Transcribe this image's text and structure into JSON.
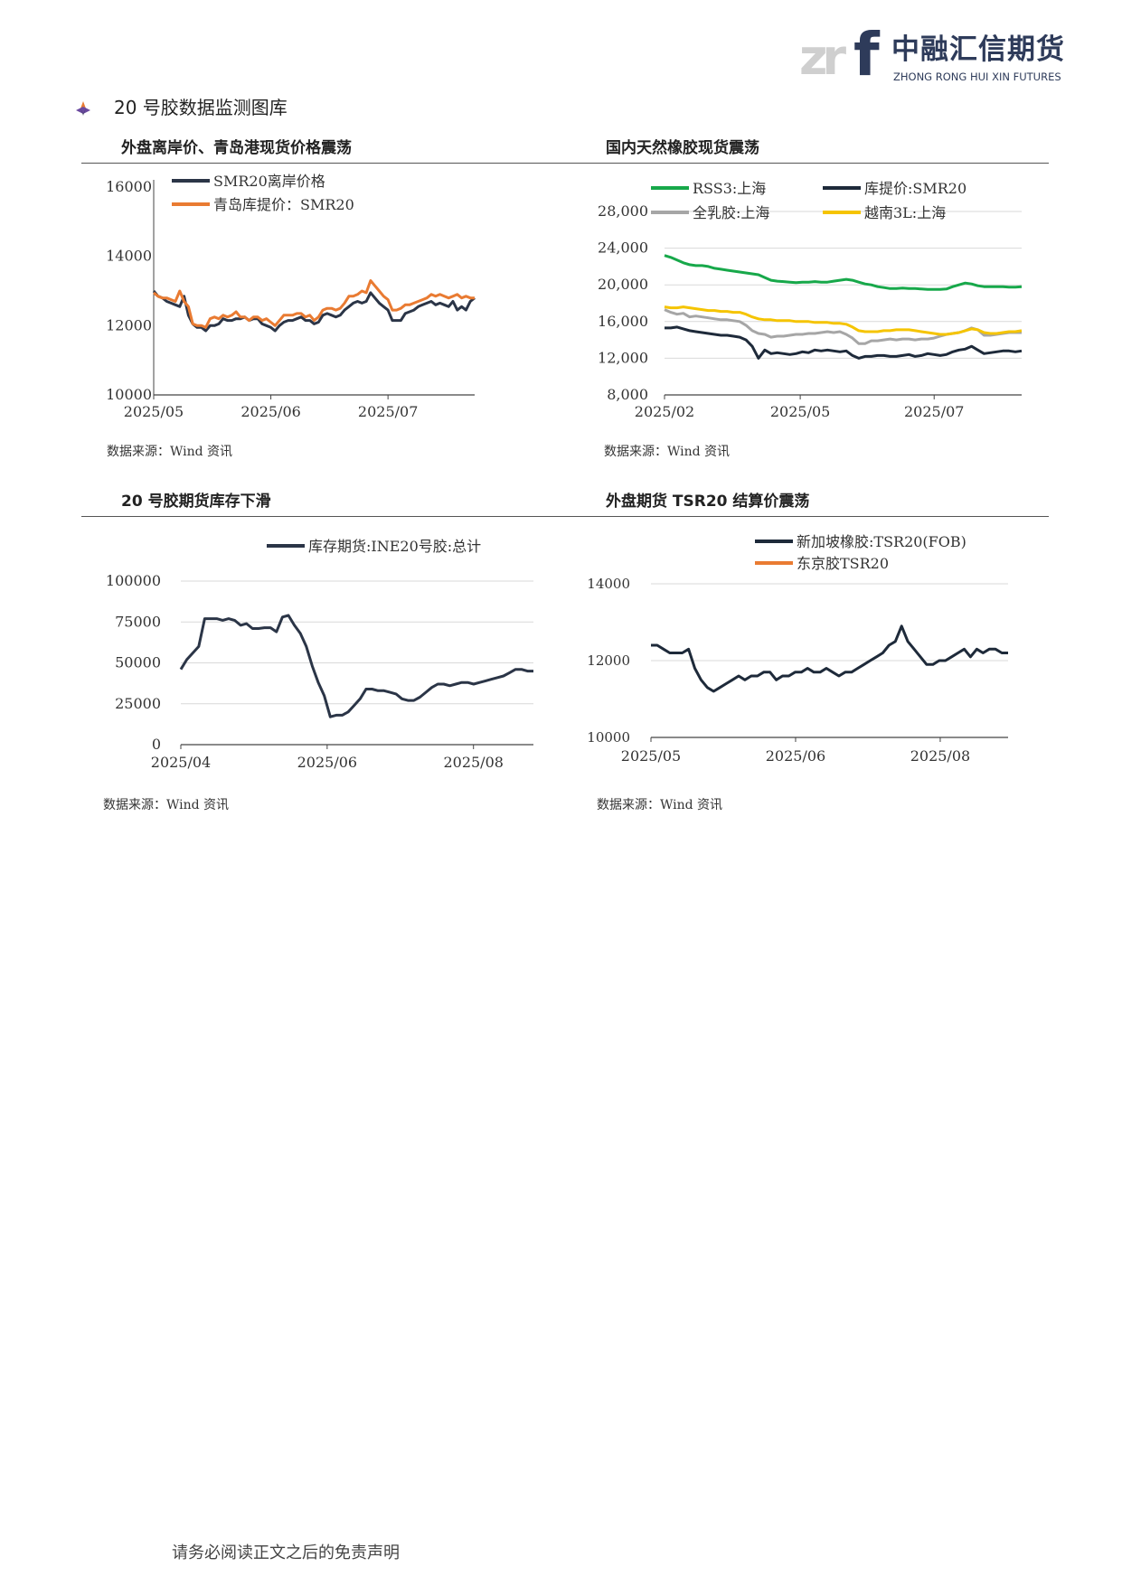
{
  "logo": {
    "mark_zr": "zr",
    "mark_f": "f",
    "name_cn": "中融汇信期货",
    "name_en": "ZHONG RONG HUI XIN FUTURES"
  },
  "section": {
    "title": "20 号胶数据监测图库"
  },
  "colors": {
    "navy": "#2b3547",
    "orange": "#e97b32",
    "green": "#17a84a",
    "gray": "#a6a6a6",
    "yellow": "#f5c400",
    "rule": "#555555"
  },
  "panels": [
    {
      "title": "外盘离岸价、青岛港现货价格震荡",
      "source": "数据来源：Wind 资讯"
    },
    {
      "title": "国内天然橡胶现货震荡",
      "source": "数据来源：Wind 资讯"
    },
    {
      "title": "20 号胶期货库存下滑",
      "source": "数据来源：Wind 资讯"
    },
    {
      "title": "外盘期货 TSR20 结算价震荡",
      "source": "数据来源：Wind 资讯"
    }
  ],
  "footer": "请务必阅读正文之后的免责声明",
  "chart_data": [
    {
      "type": "line",
      "x_ticks": [
        "2025/05",
        "2025/06",
        "2025/07"
      ],
      "ylim": [
        10000,
        16000
      ],
      "y_ticks": [
        "10000",
        "12000",
        "14000",
        "16000"
      ],
      "grid": false,
      "legend_position": "top-left",
      "x_label_position": [
        0,
        0.365,
        0.73
      ],
      "series": [
        {
          "name": "SMR20离岸价格",
          "color": "#2b3547",
          "values": [
            13000,
            12850,
            12800,
            12700,
            12650,
            12600,
            12550,
            12850,
            12300,
            12050,
            11950,
            11950,
            11850,
            12000,
            12000,
            12050,
            12200,
            12150,
            12150,
            12200,
            12200,
            12250,
            12150,
            12200,
            12200,
            12050,
            12000,
            11950,
            11850,
            12000,
            12100,
            12150,
            12150,
            12200,
            12250,
            12150,
            12150,
            12050,
            12100,
            12300,
            12350,
            12300,
            12250,
            12300,
            12450,
            12550,
            12650,
            12700,
            12650,
            12700,
            12950,
            12800,
            12650,
            12550,
            12450,
            12150,
            12150,
            12150,
            12350,
            12400,
            12450,
            12550,
            12600,
            12650,
            12700,
            12600,
            12650,
            12600,
            12550,
            12700,
            12450,
            12550,
            12450,
            12700,
            12800
          ]
        },
        {
          "name": "青岛库提价：SMR20",
          "color": "#e97b32",
          "values": [
            12950,
            12850,
            12800,
            12800,
            12750,
            12700,
            13000,
            12700,
            12550,
            12050,
            12000,
            12000,
            11950,
            12200,
            12250,
            12200,
            12300,
            12250,
            12300,
            12400,
            12250,
            12250,
            12150,
            12250,
            12250,
            12150,
            12200,
            12100,
            12000,
            12150,
            12300,
            12300,
            12300,
            12350,
            12350,
            12250,
            12300,
            12150,
            12250,
            12450,
            12500,
            12500,
            12450,
            12500,
            12650,
            12850,
            12850,
            12900,
            13000,
            12950,
            13300,
            13150,
            13000,
            12850,
            12750,
            12450,
            12450,
            12500,
            12600,
            12600,
            12650,
            12700,
            12750,
            12800,
            12900,
            12850,
            12900,
            12850,
            12800,
            12850,
            12900,
            12800,
            12850,
            12800,
            12800
          ]
        }
      ]
    },
    {
      "type": "line",
      "x_ticks": [
        "2025/02",
        "2025/05",
        "2025/07"
      ],
      "ylim": [
        8000,
        28000
      ],
      "y_ticks": [
        "8,000",
        "12,000",
        "16,000",
        "20,000",
        "24,000",
        "28,000"
      ],
      "grid": true,
      "legend_position": "top",
      "x_label_position": [
        0,
        0.38,
        0.755
      ],
      "series": [
        {
          "name": "RSS3:上海",
          "color": "#17a84a",
          "values": [
            23200,
            23000,
            22700,
            22400,
            22200,
            22100,
            22100,
            22000,
            21800,
            21700,
            21600,
            21500,
            21400,
            21300,
            21200,
            21100,
            20800,
            20500,
            20400,
            20350,
            20300,
            20250,
            20300,
            20300,
            20350,
            20300,
            20300,
            20400,
            20500,
            20600,
            20500,
            20300,
            20100,
            20000,
            19800,
            19700,
            19600,
            19600,
            19650,
            19600,
            19600,
            19550,
            19500,
            19500,
            19500,
            19550,
            19800,
            20000,
            20200,
            20100,
            19900,
            19800,
            19800,
            19800,
            19800,
            19750,
            19750,
            19800
          ]
        },
        {
          "name": "库提价:SMR20",
          "color": "#1e2a3a",
          "values": [
            15300,
            15300,
            15400,
            15200,
            15000,
            14900,
            14800,
            14700,
            14600,
            14500,
            14500,
            14400,
            14300,
            14000,
            13300,
            12000,
            12900,
            12500,
            12600,
            12500,
            12400,
            12500,
            12700,
            12600,
            12900,
            12800,
            12900,
            12800,
            12700,
            12800,
            12300,
            12000,
            12200,
            12200,
            12300,
            12300,
            12200,
            12200,
            12300,
            12400,
            12200,
            12300,
            12500,
            12400,
            12300,
            12400,
            12700,
            12900,
            13000,
            13300,
            12900,
            12500,
            12600,
            12700,
            12800,
            12800,
            12700,
            12800
          ]
        },
        {
          "name": "全乳胶:上海",
          "color": "#a6a6a6",
          "values": [
            17300,
            17000,
            16800,
            16900,
            16500,
            16600,
            16500,
            16400,
            16300,
            16200,
            16200,
            16100,
            16000,
            15600,
            15000,
            14700,
            14600,
            14300,
            14400,
            14400,
            14500,
            14600,
            14600,
            14700,
            14700,
            14800,
            14900,
            14800,
            14900,
            14600,
            14200,
            13600,
            13600,
            13900,
            13900,
            14000,
            14100,
            14000,
            14100,
            14100,
            14000,
            14100,
            14100,
            14200,
            14400,
            14600,
            14700,
            14800,
            15000,
            15300,
            15100,
            14500,
            14500,
            14600,
            14700,
            14800,
            14800,
            14800
          ]
        },
        {
          "name": "越南3L:上海",
          "color": "#f5c400",
          "values": [
            17600,
            17500,
            17500,
            17600,
            17500,
            17400,
            17300,
            17200,
            17200,
            17100,
            17100,
            17000,
            17000,
            16800,
            16500,
            16300,
            16200,
            16200,
            16100,
            16100,
            16100,
            16000,
            16000,
            16000,
            15900,
            15900,
            15900,
            15800,
            15800,
            15700,
            15400,
            15000,
            14900,
            14900,
            14900,
            15000,
            15000,
            15100,
            15100,
            15100,
            15000,
            14900,
            14800,
            14700,
            14600,
            14600,
            14700,
            14800,
            15000,
            15200,
            15100,
            14800,
            14700,
            14700,
            14800,
            14900,
            14900,
            15000
          ]
        }
      ]
    },
    {
      "type": "line",
      "x_ticks": [
        "2025/04",
        "2025/06",
        "2025/08"
      ],
      "ylim": [
        0,
        100000
      ],
      "y_ticks": [
        "0",
        "25000",
        "50000",
        "75000",
        "100000"
      ],
      "grid": true,
      "legend_position": "top",
      "x_label_position": [
        0,
        0.415,
        0.83
      ],
      "series": [
        {
          "name": "库存期货:INE20号胶:总计",
          "color": "#2b3547",
          "values": [
            46000,
            52000,
            56000,
            60000,
            77000,
            77000,
            77000,
            76000,
            77000,
            76000,
            73000,
            74000,
            71000,
            71000,
            71500,
            71500,
            69000,
            78000,
            79000,
            73000,
            68000,
            60000,
            48000,
            38000,
            30000,
            17000,
            18000,
            18000,
            20000,
            24000,
            28000,
            34000,
            34000,
            33000,
            33000,
            32000,
            31000,
            28000,
            27000,
            27000,
            29000,
            32000,
            35000,
            37000,
            37000,
            36000,
            37000,
            38000,
            38000,
            37000,
            38000,
            39000,
            40000,
            41000,
            42000,
            44000,
            46000,
            46000,
            45000,
            45000
          ]
        }
      ]
    },
    {
      "type": "line",
      "x_ticks": [
        "2025/05",
        "2025/06",
        "2025/08"
      ],
      "ylim": [
        10000,
        14000
      ],
      "y_ticks": [
        "10000",
        "12000",
        "14000"
      ],
      "grid": true,
      "legend_position": "top-left",
      "x_label_position": [
        0,
        0.405,
        0.81
      ],
      "series": [
        {
          "name": "新加坡橡胶:TSR20(FOB)",
          "color": "#1e2a3a",
          "values": [
            12400,
            12400,
            12300,
            12200,
            12200,
            12200,
            12300,
            11800,
            11500,
            11300,
            11200,
            11300,
            11400,
            11500,
            11600,
            11500,
            11600,
            11600,
            11700,
            11700,
            11500,
            11600,
            11600,
            11700,
            11700,
            11800,
            11700,
            11700,
            11800,
            11700,
            11600,
            11700,
            11700,
            11800,
            11900,
            12000,
            12100,
            12200,
            12400,
            12500,
            12900,
            12500,
            12300,
            12100,
            11900,
            11900,
            12000,
            12000,
            12100,
            12200,
            12300,
            12100,
            12300,
            12200,
            12300,
            12300,
            12200,
            12200
          ]
        },
        {
          "name": "东京胶TSR20",
          "color": "#e97b32",
          "values": []
        }
      ]
    }
  ]
}
